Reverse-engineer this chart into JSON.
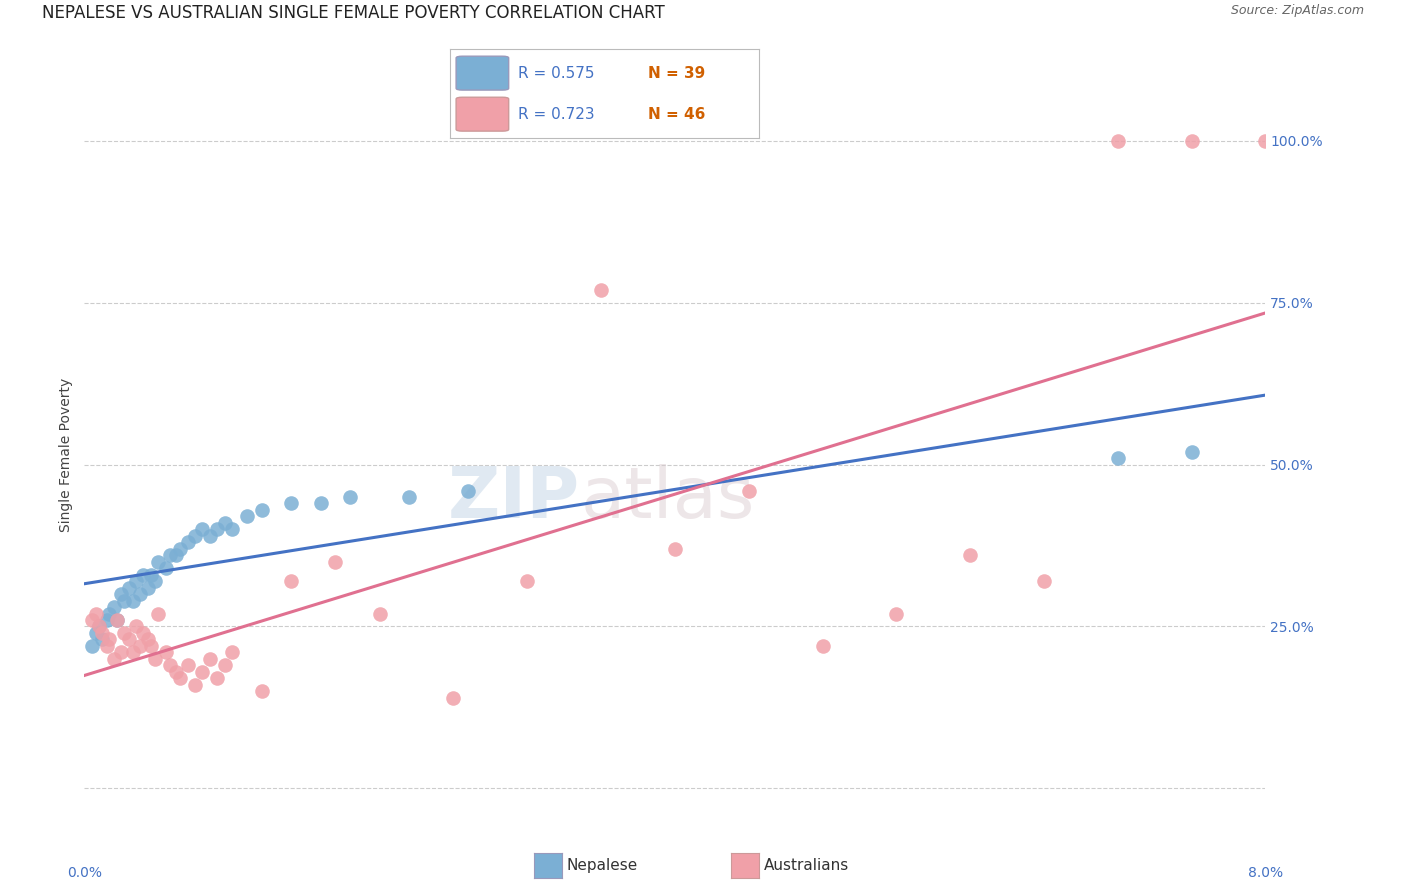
{
  "title": "NEPALESE VS AUSTRALIAN SINGLE FEMALE POVERTY CORRELATION CHART",
  "source": "Source: ZipAtlas.com",
  "ylabel": "Single Female Poverty",
  "x_min": 0.0,
  "x_max": 8.0,
  "y_min": -5.0,
  "y_max": 108.0,
  "yticks": [
    0,
    25,
    50,
    75,
    100
  ],
  "ytick_labels": [
    "",
    "25.0%",
    "50.0%",
    "75.0%",
    "100.0%"
  ],
  "watermark_1": "ZIP",
  "watermark_2": "atlas",
  "legend_blue_R": "R = 0.575",
  "legend_blue_N": "N = 39",
  "legend_pink_R": "R = 0.723",
  "legend_pink_N": "N = 46",
  "legend_label_blue": "Nepalese",
  "legend_label_pink": "Australians",
  "blue_scatter_color": "#7bafd4",
  "pink_scatter_color": "#f0a0a8",
  "blue_line_color": "#4472c4",
  "pink_line_color": "#e07090",
  "grid_color": "#cccccc",
  "bg_color": "#ffffff",
  "nepalese_x": [
    0.05,
    0.08,
    0.1,
    0.12,
    0.15,
    0.17,
    0.2,
    0.22,
    0.25,
    0.27,
    0.3,
    0.33,
    0.35,
    0.38,
    0.4,
    0.43,
    0.45,
    0.48,
    0.5,
    0.55,
    0.58,
    0.62,
    0.65,
    0.7,
    0.75,
    0.8,
    0.85,
    0.9,
    0.95,
    1.0,
    1.1,
    1.2,
    1.4,
    1.6,
    1.8,
    2.2,
    2.6,
    7.0,
    7.5
  ],
  "nepalese_y": [
    22,
    24,
    25,
    23,
    26,
    27,
    28,
    26,
    30,
    29,
    31,
    29,
    32,
    30,
    33,
    31,
    33,
    32,
    35,
    34,
    36,
    36,
    37,
    38,
    39,
    40,
    39,
    40,
    41,
    40,
    42,
    43,
    44,
    44,
    45,
    45,
    46,
    51,
    52
  ],
  "australians_x": [
    0.05,
    0.08,
    0.1,
    0.12,
    0.15,
    0.17,
    0.2,
    0.22,
    0.25,
    0.27,
    0.3,
    0.33,
    0.35,
    0.38,
    0.4,
    0.43,
    0.45,
    0.48,
    0.5,
    0.55,
    0.58,
    0.62,
    0.65,
    0.7,
    0.75,
    0.8,
    0.85,
    0.9,
    0.95,
    1.0,
    1.2,
    1.4,
    1.7,
    2.0,
    2.5,
    3.0,
    3.5,
    4.0,
    4.5,
    5.0,
    5.5,
    6.0,
    6.5,
    7.0,
    7.5,
    8.0
  ],
  "australians_y": [
    26,
    27,
    25,
    24,
    22,
    23,
    20,
    26,
    21,
    24,
    23,
    21,
    25,
    22,
    24,
    23,
    22,
    20,
    27,
    21,
    19,
    18,
    17,
    19,
    16,
    18,
    20,
    17,
    19,
    21,
    15,
    32,
    35,
    27,
    14,
    32,
    77,
    37,
    46,
    22,
    27,
    36,
    32,
    100,
    100,
    100
  ],
  "title_fontsize": 12,
  "axis_label_fontsize": 10,
  "tick_fontsize": 10
}
